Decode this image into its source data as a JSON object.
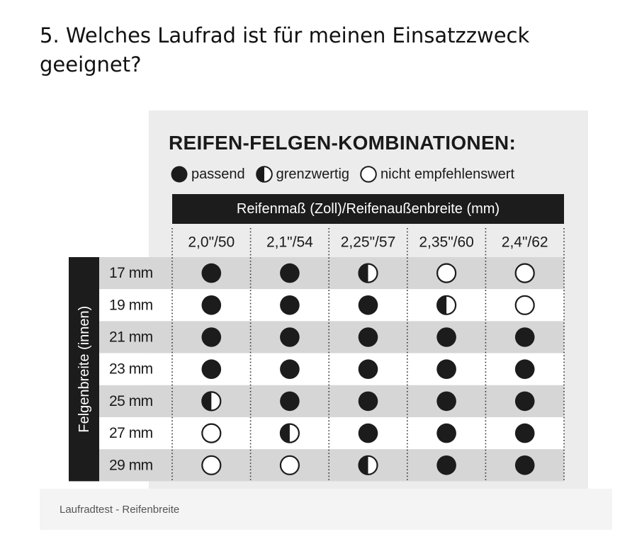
{
  "heading": "5. Welches Laufrad ist für meinen Einsatzzweck geeignet?",
  "figure": {
    "title": "REIFEN-FELGEN-KOMBINATIONEN:",
    "legend": [
      {
        "symbol": "full",
        "label": "passend"
      },
      {
        "symbol": "half",
        "label": "grenzwertig"
      },
      {
        "symbol": "empty",
        "label": "nicht empfehlenswert"
      }
    ],
    "column_header": "Reifenmaß (Zoll)/Reifenaußenbreite (mm)",
    "row_header": "Felgenbreite (innen)",
    "columns": [
      "2,0\"/50",
      "2,1\"/54",
      "2,25\"/57",
      "2,35\"/60",
      "2,4\"/62"
    ],
    "rows": [
      "17 mm",
      "19 mm",
      "21 mm",
      "23 mm",
      "25 mm",
      "27 mm",
      "29 mm"
    ],
    "matrix": [
      [
        "full",
        "full",
        "half",
        "empty",
        "empty"
      ],
      [
        "full",
        "full",
        "full",
        "half",
        "empty"
      ],
      [
        "full",
        "full",
        "full",
        "full",
        "full"
      ],
      [
        "full",
        "full",
        "full",
        "full",
        "full"
      ],
      [
        "half",
        "full",
        "full",
        "full",
        "full"
      ],
      [
        "empty",
        "half",
        "full",
        "full",
        "full"
      ],
      [
        "empty",
        "empty",
        "half",
        "full",
        "full"
      ]
    ],
    "colors": {
      "dark": "#1c1c1c",
      "row_shade": "#d6d6d6",
      "row_light": "#ffffff",
      "panel": "#ececec"
    }
  },
  "caption": "Laufradtest - Reifenbreite"
}
